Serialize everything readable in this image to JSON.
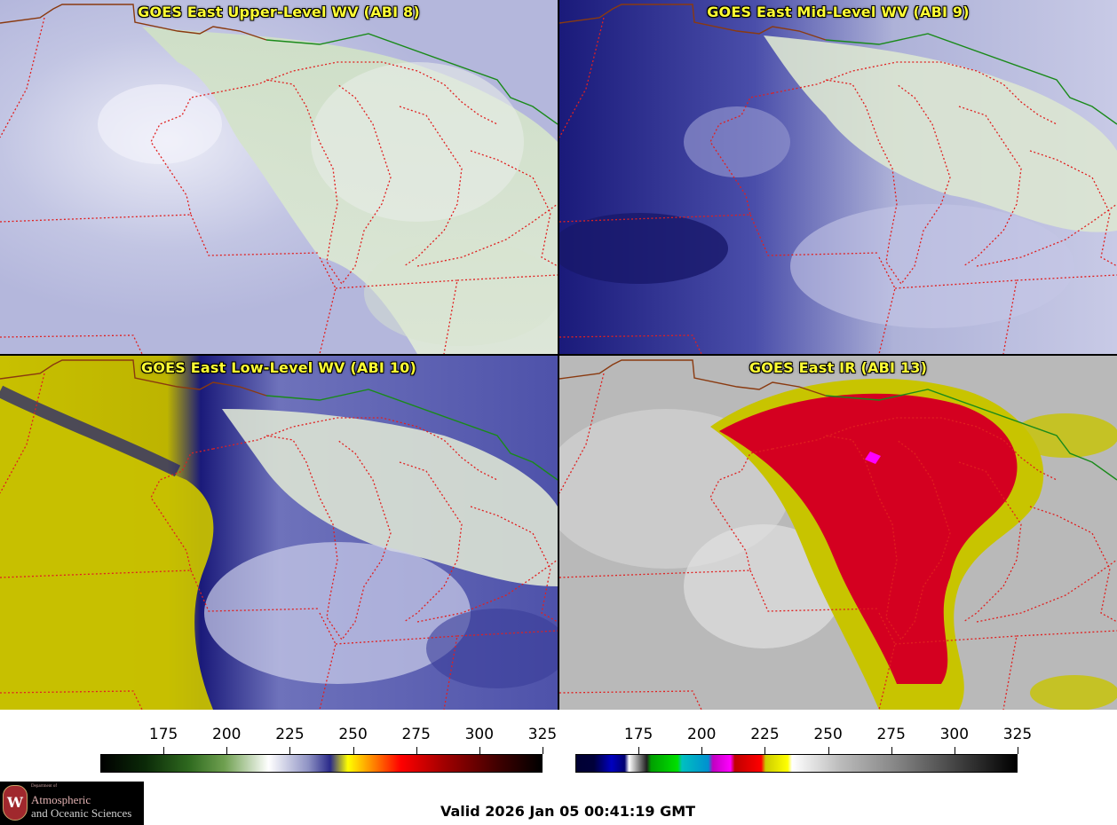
{
  "panels": [
    {
      "id": "tl",
      "title": "GOES East Upper-Level WV (ABI 8)",
      "scheme": "upper"
    },
    {
      "id": "tr",
      "title": "GOES East Mid-Level WV (ABI 9)",
      "scheme": "mid"
    },
    {
      "id": "bl",
      "title": "GOES East Low-Level WV (ABI 10)",
      "scheme": "low"
    },
    {
      "id": "br",
      "title": "GOES East IR (ABI 13)",
      "scheme": "ir"
    }
  ],
  "colorbars": [
    {
      "id": "wv",
      "labels": [
        "175",
        "200",
        "225",
        "250",
        "275",
        "300",
        "325"
      ],
      "range": [
        150,
        325
      ]
    },
    {
      "id": "ir",
      "labels": [
        "175",
        "200",
        "225",
        "250",
        "275",
        "300",
        "325"
      ],
      "range": [
        150,
        325
      ]
    }
  ],
  "logo": {
    "dept": "Department of",
    "line1": "Atmospheric",
    "line2": "and Oceanic Sciences",
    "seal_letter": "W"
  },
  "valid_time": "Valid 2026 Jan 05 00:41:19 GMT",
  "colors": {
    "state_borders": "#e02020",
    "intl_border_canada": "#1a8a1a",
    "coastline_north": "#8a3a10",
    "title_text": "#ffff33"
  }
}
